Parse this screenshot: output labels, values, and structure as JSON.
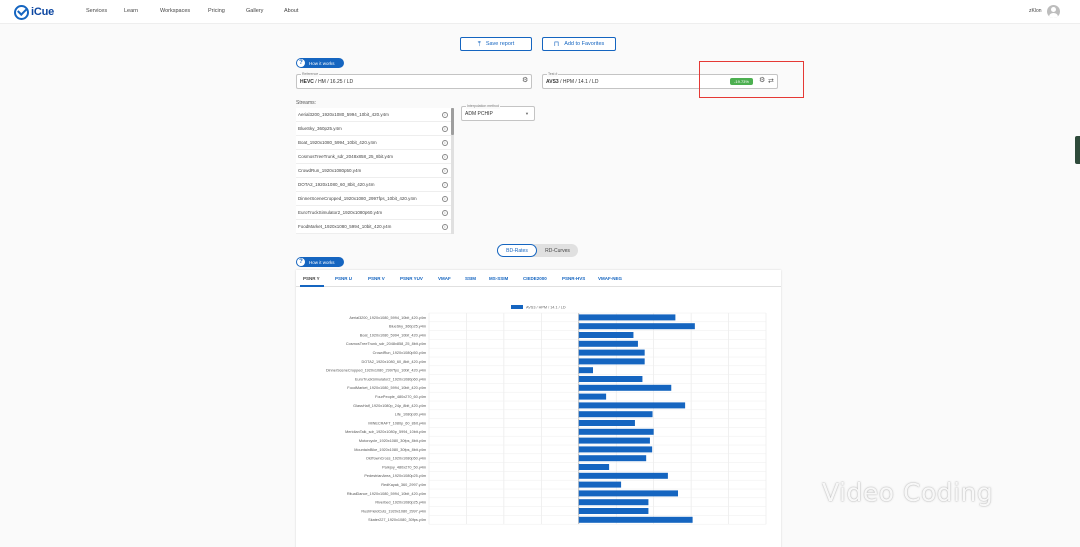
{
  "header": {
    "brand": "iCue",
    "nav": [
      "Services",
      "Learn",
      "Workspaces",
      "Pricing",
      "Gallery",
      "About"
    ],
    "user": "zKlon"
  },
  "actions": {
    "save_report": "Save report",
    "add_favorites": "Add to Favorites"
  },
  "how_it_works": "How it works",
  "reference": {
    "label": "Reference",
    "codec": "HEVC",
    "detail": " / HM / 16.25 / LD"
  },
  "test": {
    "label": "Test #",
    "codec": "AVS3",
    "detail": " / HPM / 14.1 / LD",
    "badge": "-19.73%"
  },
  "streams": {
    "title": "Streams:",
    "items": [
      "Aerial3200_1920x1080_5994_10bit_420.y4m",
      "BlueSky_360p25.y4m",
      "Boat_1920x1080_5994_10bit_420.y4m",
      "CosmosTreeTrunk_sdr_2048x858_25_8bit.y4m",
      "CrowdRun_1920x1080p50.y4m",
      "DOTA2_1920x1080_60_8bit_420.y4m",
      "DinnerSceneCropped_1920x1080_2997fps_10bit_420.y4m",
      "EuroTruckSimulator2_1920x1080p60.y4m",
      "FoodMarket_1920x1080_5994_10bit_420.y4m"
    ]
  },
  "interpolation": {
    "label": "Interpolation method",
    "value": "ADM PCHIP"
  },
  "view_toggle": {
    "options": [
      "BD-Rates",
      "RD-Curves"
    ],
    "selected": "BD-Rates"
  },
  "metric_tabs": [
    "PSNR Y",
    "PSNR U",
    "PSNR V",
    "PSNR YUV",
    "VMAF",
    "SSIM",
    "MS-SSIM",
    "CIEDE2000",
    "PSNR-HVS",
    "VMAF-NEG"
  ],
  "selected_metric": "PSNR Y",
  "watermark": "Video Coding",
  "chart_data": {
    "type": "bar",
    "orientation": "horizontal",
    "legend": [
      "AVS3 / HPM / 14.1 / LD"
    ],
    "legend_placement": "top-center",
    "grid": true,
    "zero_line": true,
    "bar_color": "#1565c0",
    "categories": [
      "Aerial3200_1920x1080_5994_10bit_420.y4m",
      "BlueSky_360p25.y4m",
      "Boat_1920x1080_5994_10bit_420.y4m",
      "CosmosTreeTrunk_sdr_2048x858_25_8bit.y4m",
      "CrowdRun_1920x1080p50.y4m",
      "DOTA2_1920x1080_60_8bit_420.y4m",
      "DinnerSceneCropped_1920x1080_2997fps_10bit_420.y4m",
      "EuroTruckSimulator2_1920x1080p60.y4m",
      "FoodMarket_1920x1080_5994_10bit_420.y4m",
      "FourPeople_480x270_60.y4m",
      "GlassHalf_1920x1080p_24p_8bit_420.y4m",
      "Life_1080p30.y4m",
      "MINECRAFT_1080p_60_8bit.y4m",
      "MeridianTalk_sdr_1920x1080p_5994_10bit.y4m",
      "Motorcycle_1920x1080_30fps_8bit.y4m",
      "MountainBike_1920x1080_30fps_8bit.y4m",
      "OldTownCross_1920x1080p50.y4m",
      "Parkjoy_480x270_50.y4m",
      "PedestrianArea_1920x1080p25.y4m",
      "RedKayak_360_2997.y4m",
      "RitualDance_1920x1080_5994_10bit_420.y4m",
      "Riverbed_1920x1080p25.y4m",
      "RushFieldCuts_1920x1080_2997.y4m",
      "Skater227_1920x1080_30fps.y4m"
    ],
    "series": [
      {
        "name": "AVS3 / HPM / 14.1 / LD",
        "values": [
          25.8,
          31.0,
          14.6,
          15.8,
          17.6,
          17.6,
          3.8,
          17.0,
          24.7,
          7.3,
          28.4,
          19.7,
          15.0,
          20.0,
          19.0,
          19.6,
          18.0,
          8.1,
          23.8,
          11.3,
          26.5,
          18.6,
          18.6,
          30.4
        ]
      }
    ],
    "xlim": [
      -40,
      50
    ]
  }
}
